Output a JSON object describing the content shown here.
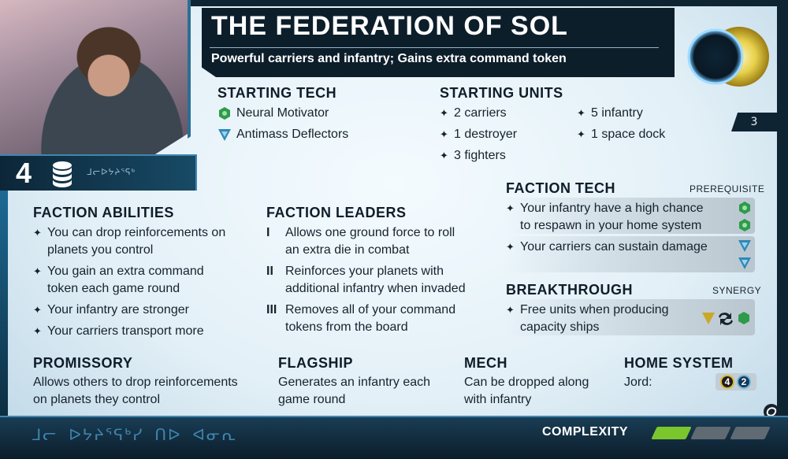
{
  "header": {
    "title": "THE FEDERATION OF SOL",
    "subtitle": "Powerful carriers and infantry; Gains extra command token",
    "page_number": "3"
  },
  "commodities": {
    "value": "4",
    "glyphs": "ᒧᓕᐅᔭᔨᕐᕋᒃ"
  },
  "starting_tech": {
    "title": "STARTING TECH",
    "items": [
      {
        "label": "Neural Motivator",
        "icon": "biotic-tech-icon",
        "color": "#2e9b4a"
      },
      {
        "label": "Antimass Deflectors",
        "icon": "propulsion-tech-icon",
        "color": "#2f88b7"
      }
    ]
  },
  "starting_units": {
    "title": "STARTING UNITS",
    "col1": [
      "2 carriers",
      "1 destroyer",
      "3 fighters"
    ],
    "col2": [
      "5 infantry",
      "1 space dock"
    ]
  },
  "faction_tech": {
    "title": "FACTION TECH",
    "prereq_label": "PREREQUISITE",
    "items": [
      {
        "line1": "Your infantry have a high chance",
        "line2": "to respawn in your home system",
        "prereq_icon": "biotic-tech-icon",
        "prereq_color": "#2e9b4a"
      },
      {
        "line1": "Your carriers can sustain damage",
        "line2": "",
        "prereq_icon": "propulsion-tech-icon",
        "prereq_color": "#2f88b7"
      }
    ]
  },
  "breakthrough": {
    "title": "BREAKTHROUGH",
    "synergy_label": "SYNERGY",
    "line1": "Free units when producing",
    "line2": "capacity ships"
  },
  "faction_abilities": {
    "title": "FACTION ABILITIES",
    "items": [
      {
        "line1": "You can drop reinforcements on",
        "line2": "planets you control"
      },
      {
        "line1": "You gain an extra command",
        "line2": "token each game round"
      },
      {
        "line1": "Your infantry are stronger",
        "line2": ""
      },
      {
        "line1": "Your carriers transport more",
        "line2": ""
      }
    ]
  },
  "faction_leaders": {
    "title": "FACTION LEADERS",
    "items": [
      {
        "rank": "I",
        "line1": "Allows one ground force to roll",
        "line2": "an extra die in combat"
      },
      {
        "rank": "II",
        "line1": "Reinforces your planets with",
        "line2": "additional infantry when invaded"
      },
      {
        "rank": "III",
        "line1": "Removes all of your command",
        "line2": "tokens from the board"
      }
    ]
  },
  "promissory": {
    "title": "PROMISSORY",
    "line1": "Allows others to drop reinforcements",
    "line2": "on planets they control"
  },
  "flagship": {
    "title": "FLAGSHIP",
    "line1": "Generates an infantry each",
    "line2": "game round"
  },
  "mech": {
    "title": "MECH",
    "line1": "Can be dropped along",
    "line2": "with infantry"
  },
  "home_system": {
    "title": "HOME SYSTEM",
    "planet": "Jord:",
    "resources": "4",
    "influence": "2"
  },
  "complexity": {
    "label": "COMPLEXITY",
    "level": 1,
    "max": 3,
    "fill_color": "#7bc62d",
    "empty_color": "#5f6a72"
  },
  "footer_glyphs": "ᒧᓕ ᐅᔭᔨᕐᕋᒃᓯ ᑎᐅ ᐊᓂᕆ"
}
